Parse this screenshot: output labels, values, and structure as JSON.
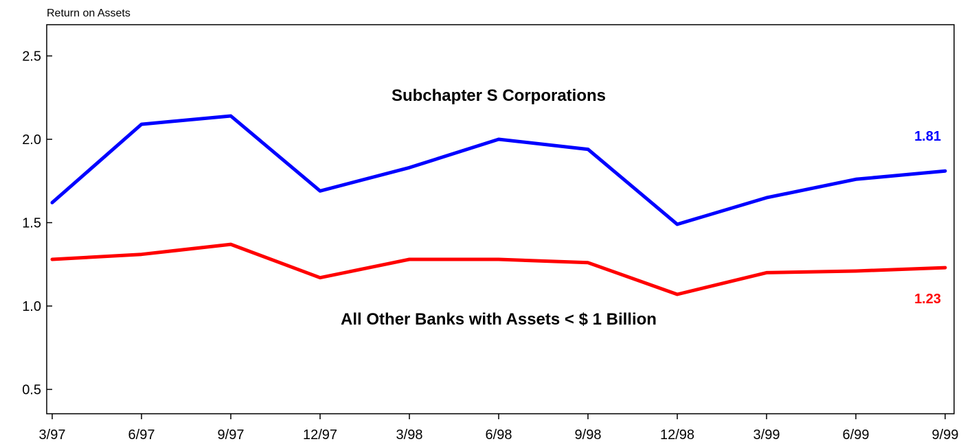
{
  "chart_data": {
    "type": "line",
    "ylabel": "Return on Assets",
    "ylim": [
      0.3,
      2.7
    ],
    "yticks": [
      "0.5",
      "1.0",
      "1.5",
      "2.0",
      "2.5"
    ],
    "categories": [
      "3/97",
      "6/97",
      "9/97",
      "12/97",
      "3/98",
      "6/98",
      "9/98",
      "12/98",
      "3/99",
      "6/99",
      "9/99"
    ],
    "grid": false,
    "series": [
      {
        "name": "Subchapter S Corporations",
        "color": "#0000ff",
        "values": [
          1.62,
          2.09,
          2.14,
          1.69,
          1.83,
          2.0,
          1.94,
          1.49,
          1.65,
          1.76,
          1.81
        ],
        "end_label": "1.81"
      },
      {
        "name": "All Other Banks with Assets < $ 1 Billion",
        "color": "#ff0000",
        "values": [
          1.28,
          1.31,
          1.37,
          1.17,
          1.28,
          1.28,
          1.26,
          1.07,
          1.2,
          1.21,
          1.23
        ],
        "end_label": "1.23"
      }
    ]
  }
}
